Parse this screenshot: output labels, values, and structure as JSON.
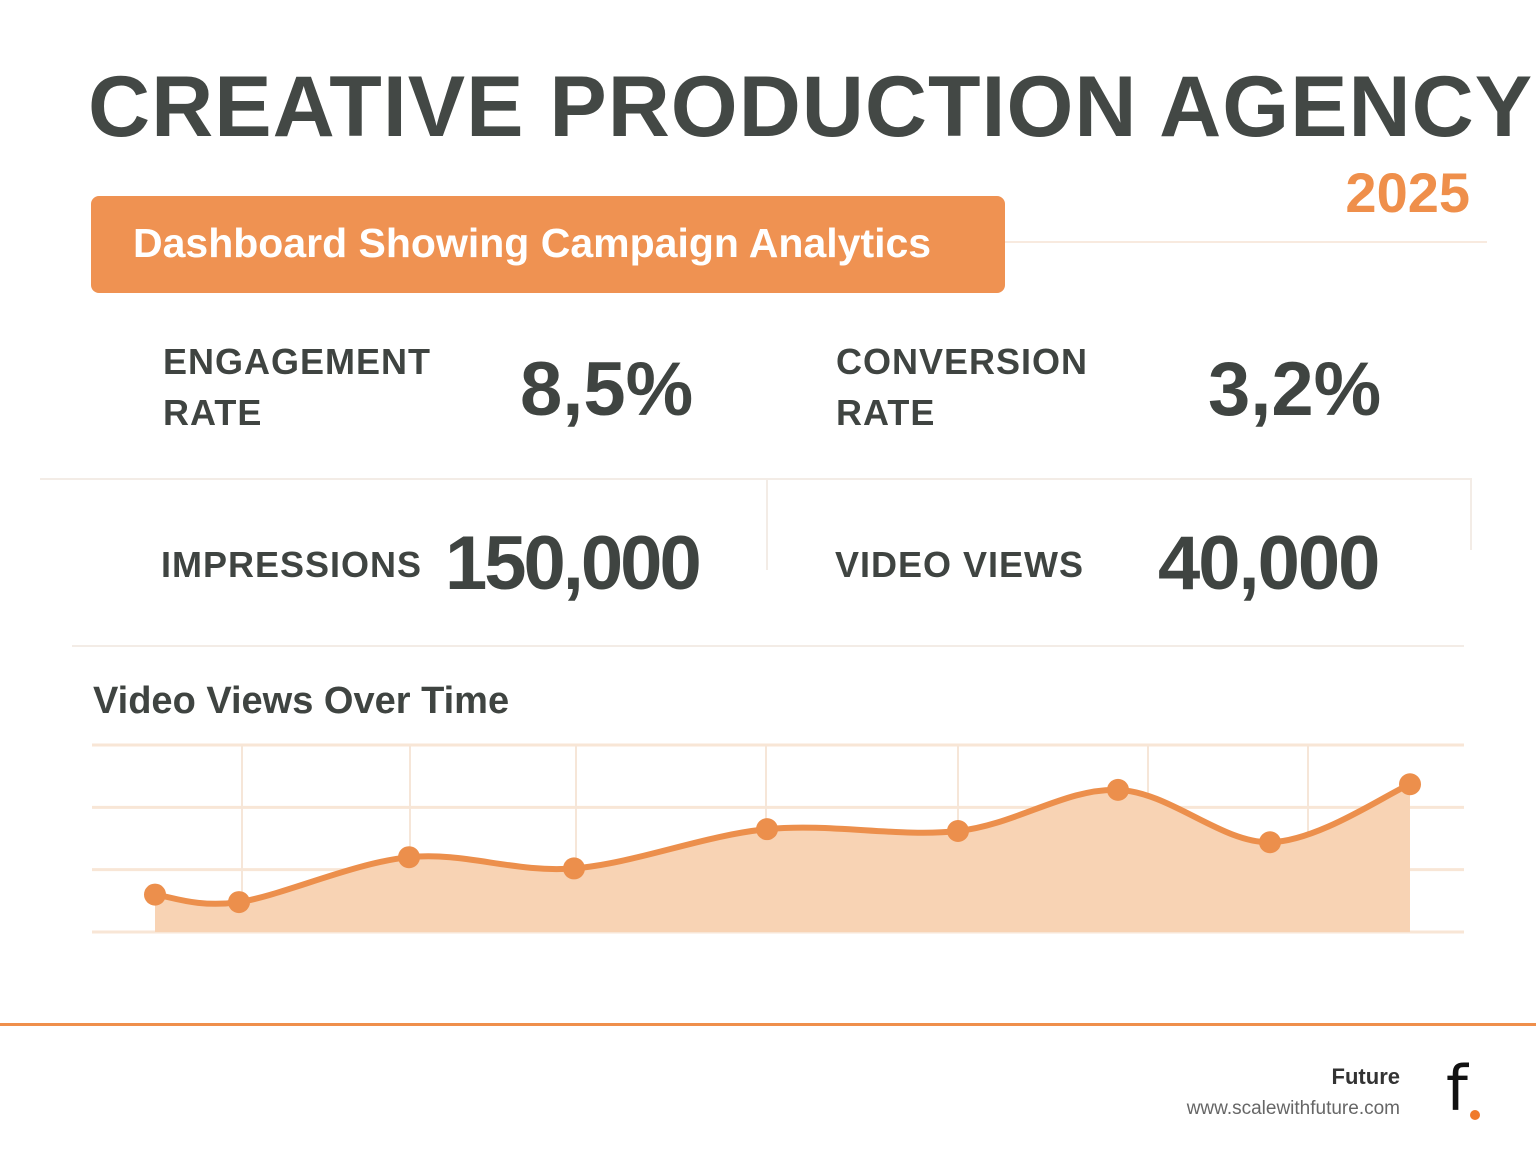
{
  "header": {
    "title": "CREATIVE PRODUCTION AGENCY",
    "year": "2025",
    "banner": "Dashboard Showing Campaign Analytics"
  },
  "metrics": [
    {
      "label_line1": "ENGAGEMENT",
      "label_line2": "RATE",
      "value": "8,5%"
    },
    {
      "label_line1": "CONVERSION",
      "label_line2": "RATE",
      "value": "3,2%"
    },
    {
      "label_line1": "IMPRESSIONS",
      "label_line2": "",
      "value": "150,000"
    },
    {
      "label_line1": "VIDEO VIEWS",
      "label_line2": "",
      "value": "40,000"
    }
  ],
  "chart_data": {
    "type": "area",
    "title": "Video Views Over Time",
    "xlabel": "",
    "ylabel": "",
    "x": [
      1,
      2,
      3,
      4,
      5,
      6,
      7,
      8,
      9
    ],
    "values": [
      20,
      16,
      40,
      34,
      55,
      54,
      76,
      48,
      79
    ],
    "ylim": [
      0,
      100
    ],
    "grid": true,
    "legend": "none",
    "line_color": "#ec8f4c",
    "fill_color": "#f8d3b4"
  },
  "footer": {
    "brand": "Future",
    "url": "www.scalewithfuture.com",
    "logo_text": "f."
  },
  "colors": {
    "accent": "#ef9252",
    "text": "#3f4441"
  }
}
